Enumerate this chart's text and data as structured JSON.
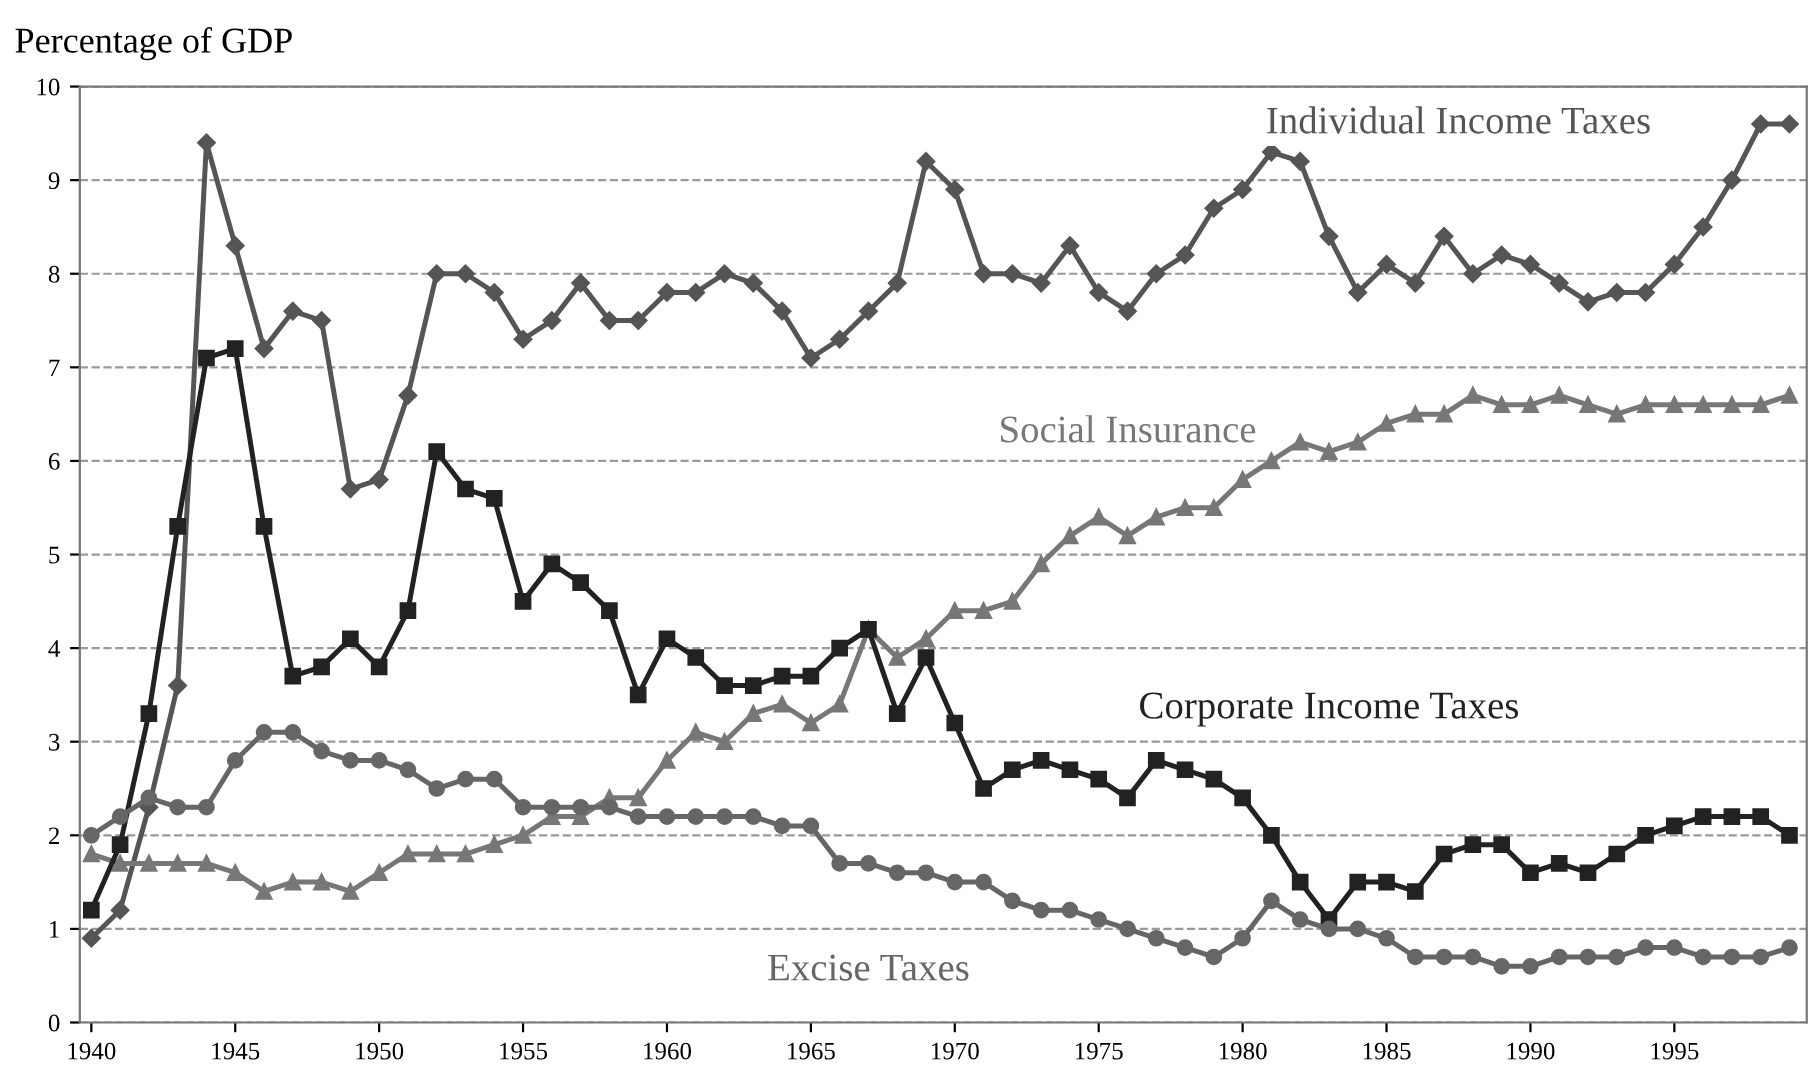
{
  "chart_data": {
    "type": "line",
    "ylabel": "Percentage of GDP",
    "x": [
      1940,
      1941,
      1942,
      1943,
      1944,
      1945,
      1946,
      1947,
      1948,
      1949,
      1950,
      1951,
      1952,
      1953,
      1954,
      1955,
      1956,
      1957,
      1958,
      1959,
      1960,
      1961,
      1962,
      1963,
      1964,
      1965,
      1966,
      1967,
      1968,
      1969,
      1970,
      1971,
      1972,
      1973,
      1974,
      1975,
      1976,
      1977,
      1978,
      1979,
      1980,
      1981,
      1982,
      1983,
      1984,
      1985,
      1986,
      1987,
      1988,
      1989,
      1990,
      1991,
      1992,
      1993,
      1994,
      1995,
      1996,
      1997,
      1998,
      1999
    ],
    "series": [
      {
        "name": "Individual Income Taxes",
        "color": "#555555",
        "marker": "diamond",
        "values": [
          0.9,
          1.2,
          2.3,
          3.6,
          9.4,
          8.3,
          7.2,
          7.6,
          7.5,
          5.7,
          5.8,
          6.7,
          8.0,
          8.0,
          7.8,
          7.3,
          7.5,
          7.9,
          7.5,
          7.5,
          7.8,
          7.8,
          8.0,
          7.9,
          7.6,
          7.1,
          7.3,
          7.6,
          7.9,
          9.2,
          8.9,
          8.0,
          8.0,
          7.9,
          8.3,
          7.8,
          7.6,
          8.0,
          8.2,
          8.7,
          8.9,
          9.3,
          9.2,
          8.4,
          7.8,
          8.1,
          7.9,
          8.4,
          8.0,
          8.2,
          8.1,
          7.9,
          7.7,
          7.8,
          7.8,
          8.1,
          8.5,
          9.0,
          9.6,
          9.6
        ]
      },
      {
        "name": "Social Insurance",
        "color": "#777777",
        "marker": "triangle",
        "values": [
          1.8,
          1.7,
          1.7,
          1.7,
          1.7,
          1.6,
          1.4,
          1.5,
          1.5,
          1.4,
          1.6,
          1.8,
          1.8,
          1.8,
          1.9,
          2.0,
          2.2,
          2.2,
          2.4,
          2.4,
          2.8,
          3.1,
          3.0,
          3.3,
          3.4,
          3.2,
          3.4,
          4.2,
          3.9,
          4.1,
          4.4,
          4.4,
          4.5,
          4.9,
          5.2,
          5.4,
          5.2,
          5.4,
          5.5,
          5.5,
          5.8,
          6.0,
          6.2,
          6.1,
          6.2,
          6.4,
          6.5,
          6.5,
          6.7,
          6.6,
          6.6,
          6.7,
          6.6,
          6.5,
          6.6,
          6.6,
          6.6,
          6.6,
          6.6,
          6.7
        ]
      },
      {
        "name": "Corporate Income Taxes",
        "color": "#222222",
        "marker": "square",
        "values": [
          1.2,
          1.9,
          3.3,
          5.3,
          7.1,
          7.2,
          5.3,
          3.7,
          3.8,
          4.1,
          3.8,
          4.4,
          6.1,
          5.7,
          5.6,
          4.5,
          4.9,
          4.7,
          4.4,
          3.5,
          4.1,
          3.9,
          3.6,
          3.6,
          3.7,
          3.7,
          4.0,
          4.2,
          3.3,
          3.9,
          3.2,
          2.5,
          2.7,
          2.8,
          2.7,
          2.6,
          2.4,
          2.8,
          2.7,
          2.6,
          2.4,
          2.0,
          1.5,
          1.1,
          1.5,
          1.5,
          1.4,
          1.8,
          1.9,
          1.9,
          1.6,
          1.7,
          1.6,
          1.8,
          2.0,
          2.1,
          2.2,
          2.2,
          2.2,
          2.0
        ]
      },
      {
        "name": "Excise Taxes",
        "color": "#666666",
        "marker": "circle",
        "values": [
          2.0,
          2.2,
          2.4,
          2.3,
          2.3,
          2.8,
          3.1,
          3.1,
          2.9,
          2.8,
          2.8,
          2.7,
          2.5,
          2.6,
          2.6,
          2.3,
          2.3,
          2.3,
          2.3,
          2.2,
          2.2,
          2.2,
          2.2,
          2.2,
          2.1,
          2.1,
          1.7,
          1.7,
          1.6,
          1.6,
          1.5,
          1.5,
          1.3,
          1.2,
          1.2,
          1.1,
          1.0,
          0.9,
          0.8,
          0.7,
          0.9,
          1.3,
          1.1,
          1.0,
          1.0,
          0.9,
          0.7,
          0.7,
          0.7,
          0.6,
          0.6,
          0.7,
          0.7,
          0.7,
          0.8,
          0.8,
          0.7,
          0.7,
          0.7,
          0.8
        ]
      }
    ],
    "xlim": [
      1939.6,
      1999.6
    ],
    "xticks": [
      1940,
      1945,
      1950,
      1955,
      1960,
      1965,
      1970,
      1975,
      1980,
      1985,
      1990,
      1995
    ],
    "ylim": [
      0,
      10
    ],
    "yticks": [
      0,
      1,
      2,
      3,
      4,
      5,
      6,
      7,
      8,
      9,
      10
    ],
    "grid": "y",
    "line_style": "solid",
    "legend": false
  }
}
